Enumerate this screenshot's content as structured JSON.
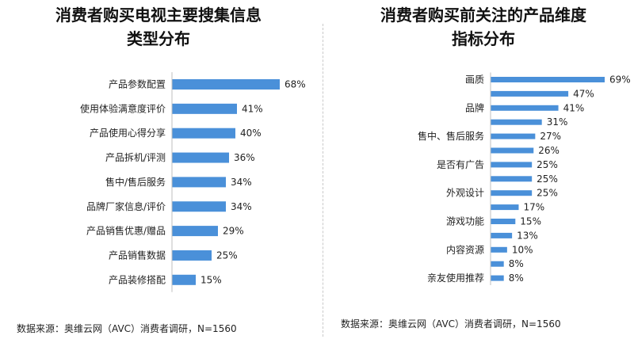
{
  "chart_data": [
    {
      "type": "bar",
      "orientation": "horizontal",
      "title": "消费者购买电视主要搜集信息\n类型分布",
      "title_lines": [
        "消费者购买电视主要搜集信息",
        "类型分布"
      ],
      "categories": [
        "产品参数配置",
        "使用体验满意度评价",
        "产品使用心得分享",
        "产品拆机/评测",
        "售中/售后服务",
        "品牌厂家信息/评价",
        "产品销售优惠/赠品",
        "产品销售数据",
        "产品装修搭配"
      ],
      "values": [
        68,
        41,
        40,
        36,
        34,
        34,
        29,
        25,
        15
      ],
      "value_labels": [
        "68%",
        "41%",
        "40%",
        "36%",
        "34%",
        "34%",
        "29%",
        "25%",
        "15%"
      ],
      "unit": "%",
      "bar_color": "#4a90d9",
      "grid": false,
      "source": "数据来源：奥维云网（AVC）消费者调研，N=1560"
    },
    {
      "type": "bar",
      "orientation": "horizontal",
      "title": "消费者购买前关注的产品维度\n指标分布",
      "title_lines": [
        "消费者购买前关注的产品维度",
        "指标分布"
      ],
      "categories": [
        "画质",
        "",
        "品牌",
        "",
        "售中、售后服务",
        "",
        "是否有广告",
        "",
        "外观设计",
        "",
        "游戏功能",
        "",
        "内容资源",
        "",
        "亲友使用推荐"
      ],
      "values": [
        69,
        47,
        41,
        31,
        27,
        26,
        25,
        25,
        25,
        17,
        15,
        13,
        10,
        8,
        8
      ],
      "value_labels": [
        "69%",
        "47%",
        "41%",
        "31%",
        "27%",
        "26%",
        "25%",
        "25%",
        "25%",
        "17%",
        "15%",
        "13%",
        "10%",
        "8%",
        "8%"
      ],
      "unit": "%",
      "bar_color": "#4a90d9",
      "grid": false,
      "source": "数据来源：奥维云网（AVC）消费者调研，N=1560"
    }
  ]
}
